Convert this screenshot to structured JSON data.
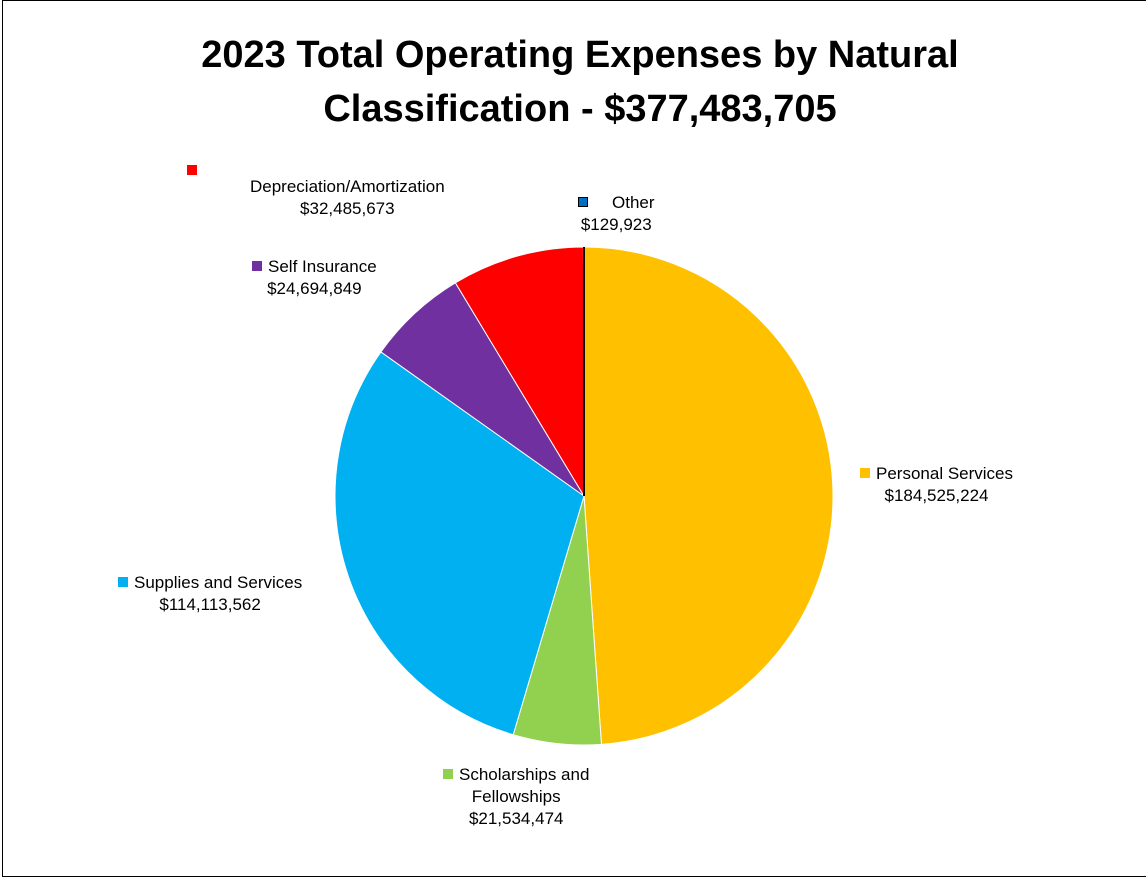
{
  "chart_data": {
    "type": "pie",
    "title": "2023 Total Operating Expenses by Natural Classification - $377,483,705",
    "title_lines": [
      "2023 Total Operating Expenses by Natural",
      "Classification - $377,483,705"
    ],
    "start_angle_deg": 0,
    "direction": "clockwise",
    "slices": [
      {
        "name": "Personal Services",
        "name_lines": [
          "Personal Services"
        ],
        "value": 184525224,
        "value_label": "$184,525,224",
        "color": "#FFC000"
      },
      {
        "name": "Scholarships and Fellowships",
        "name_lines": [
          "Scholarships and",
          "Fellowships"
        ],
        "value": 21534474,
        "value_label": "$21,534,474",
        "color": "#92D050"
      },
      {
        "name": "Supplies and Services",
        "name_lines": [
          "Supplies and Services"
        ],
        "value": 114113562,
        "value_label": "$114,113,562",
        "color": "#00B0F0"
      },
      {
        "name": "Self Insurance",
        "name_lines": [
          "Self Insurance"
        ],
        "value": 24694849,
        "value_label": "$24,694,849",
        "color": "#7030A0"
      },
      {
        "name": "Depreciation/Amortization",
        "name_lines": [
          "Depreciation/Amortization"
        ],
        "value": 32485673,
        "value_label": "$32,485,673",
        "color": "#FF0000"
      },
      {
        "name": "Other",
        "name_lines": [
          "Other"
        ],
        "value": 129923,
        "value_label": "$129,923",
        "color": "#0070C0"
      }
    ]
  }
}
